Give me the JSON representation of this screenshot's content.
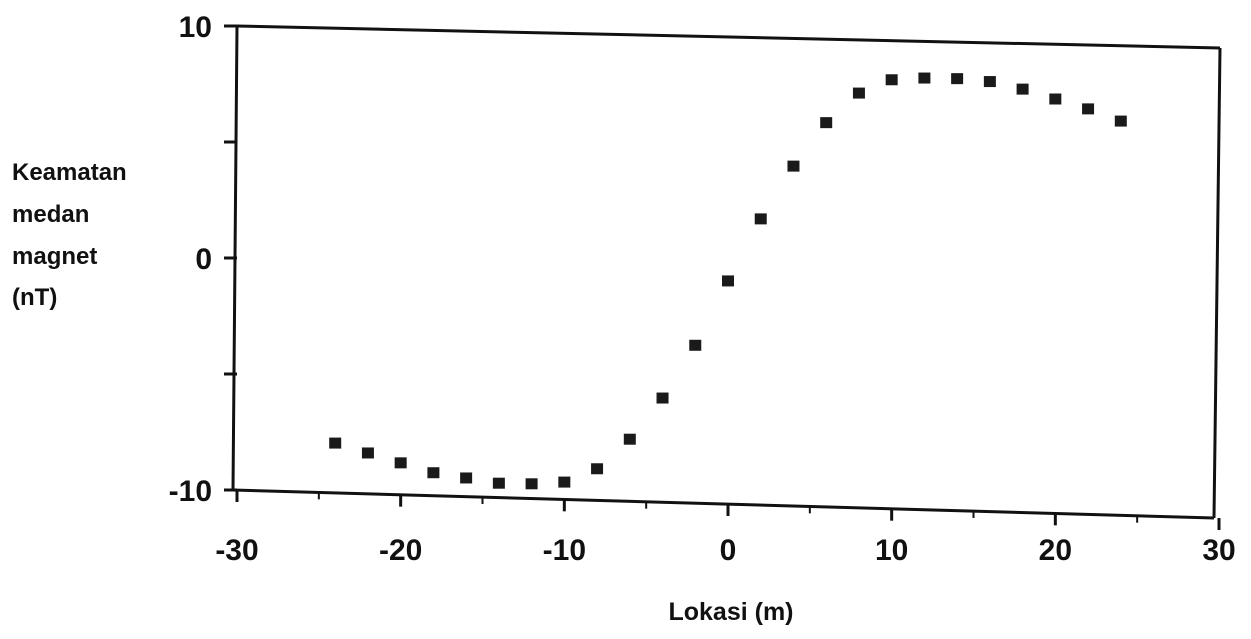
{
  "chart_data": {
    "type": "scatter",
    "title": "",
    "xlabel": "Lokasi (m)",
    "ylabel": [
      "Keamatan",
      "medan",
      "magnet",
      "(nT)"
    ],
    "xlim": [
      -30,
      30
    ],
    "ylim": [
      -10,
      10
    ],
    "xticks": [
      -30,
      -20,
      -10,
      0,
      10,
      20,
      30
    ],
    "xtick_labels": [
      "-30",
      "-20",
      "-10",
      "0",
      "10",
      "20",
      "30"
    ],
    "yticks": [
      -10,
      -5,
      0,
      5,
      10
    ],
    "ytick_labels": [
      "-10",
      "",
      "0",
      "",
      "10"
    ],
    "grid": false,
    "marker_color": "#1a1a1a",
    "series": [
      {
        "x": [
          -24,
          -22,
          -20,
          -18,
          -16,
          -14,
          -12,
          -10,
          -8,
          -6,
          -4,
          -2,
          0,
          2,
          4,
          6,
          8,
          10,
          12,
          14,
          16,
          18,
          20,
          22,
          24
        ],
        "y": [
          -7.9,
          -8.3,
          -8.7,
          -9.1,
          -9.3,
          -9.5,
          -9.5,
          -9.4,
          -8.8,
          -7.5,
          -5.7,
          -3.4,
          -0.6,
          2.1,
          4.4,
          6.3,
          7.6,
          8.2,
          8.3,
          8.3,
          8.2,
          7.9,
          7.5,
          7.1,
          6.6
        ]
      }
    ]
  }
}
